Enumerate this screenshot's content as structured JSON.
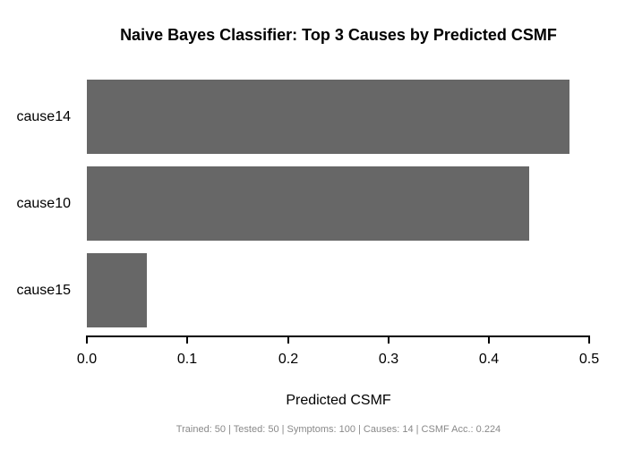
{
  "chart": {
    "title": "Naive Bayes Classifier: Top 3 Causes by Predicted CSMF",
    "xlabel": "Predicted CSMF"
  },
  "chart_data": {
    "type": "bar",
    "orientation": "horizontal",
    "title": "Naive Bayes Classifier: Top 3 Causes by Predicted CSMF",
    "categories": [
      "cause14",
      "cause10",
      "cause15"
    ],
    "values": [
      0.48,
      0.44,
      0.06
    ],
    "xlabel": "Predicted CSMF",
    "ylabel": "",
    "xlim": [
      0.0,
      0.5
    ],
    "x_ticks": [
      0.0,
      0.1,
      0.2,
      0.3,
      0.4,
      0.5
    ],
    "x_tick_labels": [
      "0.0",
      "0.1",
      "0.2",
      "0.3",
      "0.4",
      "0.5"
    ],
    "bar_color": "#676767",
    "axis_color": "#000000",
    "grid": false,
    "legend": "none"
  },
  "footer": {
    "text": "Trained: 50 | Tested: 50 | Symptoms: 100 | Causes: 14 | CSMF Acc.: 0.224",
    "color": "#898989"
  }
}
